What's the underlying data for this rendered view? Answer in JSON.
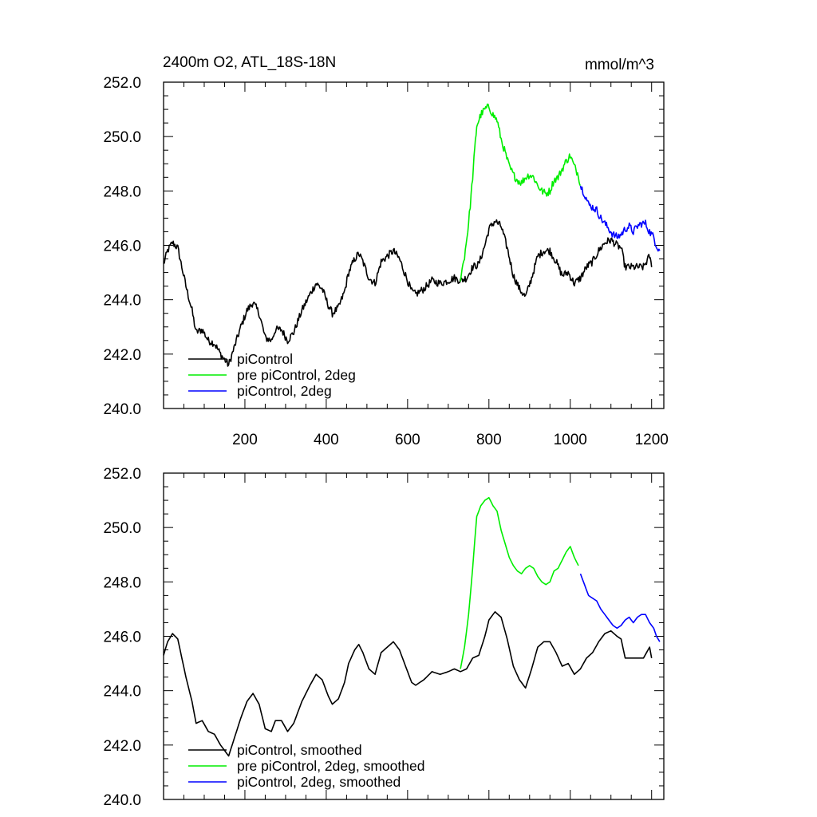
{
  "header": {
    "title": "2400m O2, ATL_18S-18N",
    "units": "mmol/m^3"
  },
  "chart_data": [
    {
      "type": "line",
      "title": "2400m O2, ATL_18S-18N",
      "units": "mmol/m^3",
      "xlim": [
        0,
        1230
      ],
      "ylim": [
        240.0,
        252.0
      ],
      "xticks": [
        "200",
        "400",
        "600",
        "800",
        "1000",
        "1200"
      ],
      "yticks": [
        "240.0",
        "242.0",
        "244.0",
        "246.0",
        "248.0",
        "250.0",
        "252.0"
      ],
      "legend_position": "bottom-left",
      "noise": 0.14,
      "series": [
        {
          "name": "piControl",
          "color": "#000000",
          "x": [
            0,
            10,
            22,
            35,
            55,
            70,
            80,
            95,
            110,
            125,
            140,
            160,
            175,
            190,
            205,
            220,
            235,
            250,
            265,
            275,
            290,
            305,
            320,
            340,
            360,
            375,
            390,
            405,
            415,
            430,
            445,
            455,
            470,
            480,
            490,
            505,
            520,
            535,
            550,
            565,
            580,
            595,
            610,
            620,
            640,
            660,
            680,
            700,
            715,
            730,
            745,
            760,
            775,
            790,
            800,
            815,
            830,
            845,
            860,
            875,
            890,
            905,
            920,
            935,
            950,
            965,
            980,
            995,
            1010,
            1025,
            1040,
            1055,
            1070,
            1085,
            1100,
            1115,
            1125,
            1135,
            1150,
            1165,
            1180,
            1195,
            1200
          ],
          "y": [
            245.3,
            245.8,
            246.1,
            245.9,
            244.5,
            243.6,
            242.8,
            242.9,
            242.5,
            242.4,
            242.0,
            241.6,
            242.3,
            243.0,
            243.6,
            243.9,
            243.5,
            242.6,
            242.5,
            242.9,
            242.9,
            242.5,
            242.8,
            243.6,
            244.2,
            244.6,
            244.4,
            243.8,
            243.5,
            243.7,
            244.3,
            245.0,
            245.5,
            245.7,
            245.4,
            244.8,
            244.6,
            245.4,
            245.6,
            245.8,
            245.5,
            244.9,
            244.3,
            244.2,
            244.4,
            244.7,
            244.6,
            244.7,
            244.8,
            244.7,
            244.8,
            245.2,
            245.3,
            246.0,
            246.6,
            246.9,
            246.7,
            245.9,
            244.9,
            244.4,
            244.1,
            244.8,
            245.6,
            245.8,
            245.8,
            245.4,
            244.9,
            245.0,
            244.6,
            244.8,
            245.2,
            245.4,
            245.8,
            246.1,
            246.2,
            246.0,
            245.9,
            245.2,
            245.2,
            245.2,
            245.2,
            245.6,
            245.2
          ]
        },
        {
          "name": "pre piControl, 2deg",
          "color": "#00ee00",
          "x": [
            730,
            740,
            750,
            760,
            765,
            770,
            780,
            790,
            800,
            810,
            820,
            830,
            840,
            850,
            860,
            870,
            880,
            890,
            900,
            910,
            920,
            930,
            940,
            950,
            960,
            970,
            980,
            990,
            1000,
            1010,
            1020,
            1025
          ],
          "y": [
            244.8,
            245.6,
            246.8,
            248.5,
            249.5,
            250.4,
            250.8,
            251.0,
            251.1,
            250.8,
            250.6,
            249.9,
            249.4,
            248.9,
            248.6,
            248.4,
            248.3,
            248.5,
            248.6,
            248.5,
            248.2,
            248.0,
            247.9,
            248.0,
            248.4,
            248.5,
            248.8,
            249.1,
            249.3,
            248.9,
            248.6,
            248.2
          ]
        },
        {
          "name": "piControl, 2deg",
          "color": "#0000ff",
          "x": [
            1025,
            1035,
            1045,
            1055,
            1065,
            1075,
            1085,
            1095,
            1105,
            1115,
            1125,
            1135,
            1145,
            1155,
            1165,
            1175,
            1185,
            1195,
            1205,
            1212,
            1220
          ],
          "y": [
            248.2,
            247.9,
            247.5,
            247.4,
            247.3,
            247.0,
            246.8,
            246.6,
            246.4,
            246.3,
            246.4,
            246.6,
            246.7,
            246.5,
            246.7,
            246.8,
            246.8,
            246.5,
            246.3,
            246.0,
            245.8
          ]
        }
      ]
    },
    {
      "type": "line",
      "xlim": [
        0,
        1230
      ],
      "ylim": [
        240.0,
        252.0
      ],
      "yticks": [
        "240.0",
        "242.0",
        "244.0",
        "246.0",
        "248.0",
        "250.0",
        "252.0"
      ],
      "legend_position": "bottom-left",
      "noise": 0,
      "series": [
        {
          "name": "piControl, smoothed",
          "color": "#000000",
          "x": [
            0,
            10,
            22,
            35,
            55,
            70,
            80,
            95,
            110,
            125,
            140,
            160,
            175,
            190,
            205,
            220,
            235,
            250,
            265,
            275,
            290,
            305,
            320,
            340,
            360,
            375,
            390,
            405,
            415,
            430,
            445,
            455,
            470,
            480,
            490,
            505,
            520,
            535,
            550,
            565,
            580,
            595,
            610,
            620,
            640,
            660,
            680,
            700,
            715,
            730,
            745,
            760,
            775,
            790,
            800,
            815,
            830,
            845,
            860,
            875,
            890,
            905,
            920,
            935,
            950,
            965,
            980,
            995,
            1010,
            1025,
            1040,
            1055,
            1070,
            1085,
            1100,
            1115,
            1125,
            1135,
            1150,
            1165,
            1180,
            1195,
            1200
          ],
          "y": [
            245.3,
            245.8,
            246.1,
            245.9,
            244.5,
            243.6,
            242.8,
            242.9,
            242.5,
            242.4,
            242.0,
            241.6,
            242.3,
            243.0,
            243.6,
            243.9,
            243.5,
            242.6,
            242.5,
            242.9,
            242.9,
            242.5,
            242.8,
            243.6,
            244.2,
            244.6,
            244.4,
            243.8,
            243.5,
            243.7,
            244.3,
            245.0,
            245.5,
            245.7,
            245.4,
            244.8,
            244.6,
            245.4,
            245.6,
            245.8,
            245.5,
            244.9,
            244.3,
            244.2,
            244.4,
            244.7,
            244.6,
            244.7,
            244.8,
            244.7,
            244.8,
            245.2,
            245.3,
            246.0,
            246.6,
            246.9,
            246.7,
            245.9,
            244.9,
            244.4,
            244.1,
            244.8,
            245.6,
            245.8,
            245.8,
            245.4,
            244.9,
            245.0,
            244.6,
            244.8,
            245.2,
            245.4,
            245.8,
            246.1,
            246.2,
            246.0,
            245.9,
            245.2,
            245.2,
            245.2,
            245.2,
            245.6,
            245.2
          ]
        },
        {
          "name": "pre piControl, 2deg, smoothed",
          "color": "#00ee00",
          "x": [
            730,
            740,
            750,
            760,
            765,
            770,
            780,
            790,
            800,
            810,
            820,
            830,
            840,
            850,
            860,
            870,
            880,
            890,
            900,
            910,
            920,
            930,
            940,
            950,
            960,
            970,
            980,
            990,
            1000,
            1010,
            1020
          ],
          "y": [
            244.8,
            245.6,
            246.8,
            248.5,
            249.5,
            250.4,
            250.8,
            251.0,
            251.1,
            250.8,
            250.6,
            249.9,
            249.4,
            248.9,
            248.6,
            248.4,
            248.3,
            248.5,
            248.6,
            248.5,
            248.2,
            248.0,
            247.9,
            248.0,
            248.4,
            248.5,
            248.8,
            249.1,
            249.3,
            248.9,
            248.6
          ]
        },
        {
          "name": "piControl, 2deg, smoothed",
          "color": "#0000ff",
          "x": [
            1025,
            1035,
            1045,
            1055,
            1065,
            1075,
            1085,
            1095,
            1105,
            1115,
            1125,
            1135,
            1145,
            1155,
            1165,
            1175,
            1185,
            1195,
            1205,
            1212,
            1220
          ],
          "y": [
            248.3,
            247.9,
            247.5,
            247.4,
            247.3,
            247.0,
            246.8,
            246.6,
            246.4,
            246.3,
            246.4,
            246.6,
            246.7,
            246.5,
            246.7,
            246.8,
            246.8,
            246.5,
            246.3,
            246.0,
            245.8
          ]
        }
      ]
    }
  ]
}
